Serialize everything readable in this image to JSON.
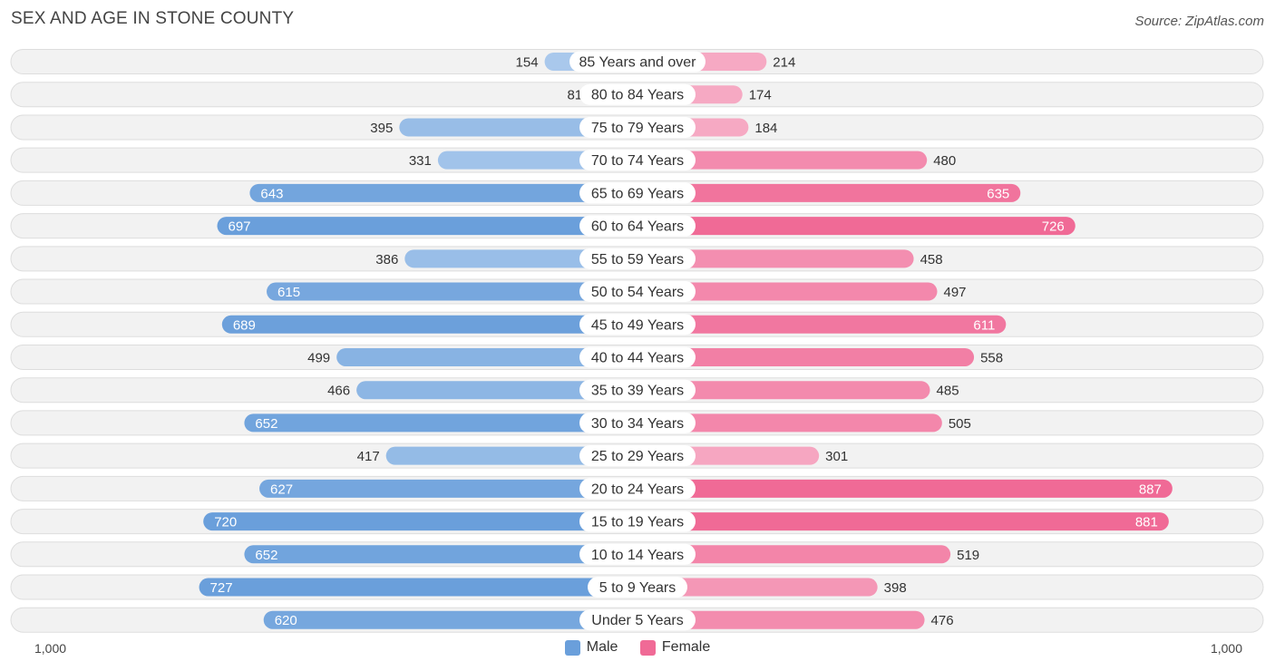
{
  "title": "SEX AND AGE IN STONE COUNTY",
  "source": "Source: ZipAtlas.com",
  "colors": {
    "male_strong": "#6a9fdb",
    "male_light": "#a9c8ec",
    "female_strong": "#f06a96",
    "female_light": "#f6a9c3",
    "row_bg": "#f2f2f2",
    "row_border": "#dddddd"
  },
  "chart_data": {
    "type": "bar",
    "orientation": "horizontal-butterfly",
    "title": "SEX AND AGE IN STONE COUNTY",
    "categories": [
      "85 Years and over",
      "80 to 84 Years",
      "75 to 79 Years",
      "70 to 74 Years",
      "65 to 69 Years",
      "60 to 64 Years",
      "55 to 59 Years",
      "50 to 54 Years",
      "45 to 49 Years",
      "40 to 44 Years",
      "35 to 39 Years",
      "30 to 34 Years",
      "25 to 29 Years",
      "20 to 24 Years",
      "15 to 19 Years",
      "10 to 14 Years",
      "5 to 9 Years",
      "Under 5 Years"
    ],
    "series": [
      {
        "name": "Male",
        "values": [
          154,
          81,
          395,
          331,
          643,
          697,
          386,
          615,
          689,
          499,
          466,
          652,
          417,
          627,
          720,
          652,
          727,
          620
        ]
      },
      {
        "name": "Female",
        "values": [
          214,
          174,
          184,
          480,
          635,
          726,
          458,
          497,
          611,
          558,
          485,
          505,
          301,
          887,
          881,
          519,
          398,
          476
        ]
      }
    ],
    "xlim": [
      -1000,
      1000
    ],
    "axis_labels": {
      "left": "1,000",
      "right": "1,000"
    },
    "legend": [
      "Male",
      "Female"
    ],
    "legend_position": "bottom-center"
  }
}
